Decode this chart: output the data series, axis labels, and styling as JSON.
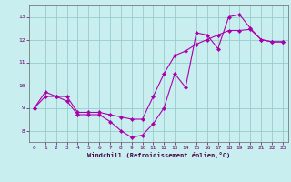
{
  "xlabel": "Windchill (Refroidissement éolien,°C)",
  "bg_color": "#c8eef0",
  "plot_bg_color": "#c8eef0",
  "line_color": "#aa00aa",
  "grid_color": "#99cccc",
  "xlim": [
    -0.5,
    23.5
  ],
  "ylim": [
    7.5,
    13.5
  ],
  "yticks": [
    8,
    9,
    10,
    11,
    12,
    13
  ],
  "xticks": [
    0,
    1,
    2,
    3,
    4,
    5,
    6,
    7,
    8,
    9,
    10,
    11,
    12,
    13,
    14,
    15,
    16,
    17,
    18,
    19,
    20,
    21,
    22,
    23
  ],
  "series1_x": [
    0,
    1,
    2,
    3,
    4,
    5,
    6,
    7,
    8,
    9,
    10,
    11,
    12,
    13,
    14,
    15,
    16,
    17,
    18,
    19,
    20,
    21,
    22,
    23
  ],
  "series1_y": [
    9.0,
    9.7,
    9.5,
    9.3,
    8.7,
    8.7,
    8.7,
    8.4,
    8.0,
    7.7,
    7.8,
    8.3,
    9.0,
    10.5,
    9.9,
    12.3,
    12.2,
    11.6,
    13.0,
    13.1,
    12.5,
    12.0,
    11.9,
    11.9
  ],
  "series2_x": [
    0,
    1,
    2,
    3,
    4,
    5,
    6,
    7,
    8,
    9,
    10,
    11,
    12,
    13,
    14,
    15,
    16,
    17,
    18,
    19,
    20,
    21,
    22,
    23
  ],
  "series2_y": [
    9.0,
    9.5,
    9.5,
    9.5,
    8.8,
    8.8,
    8.8,
    8.7,
    8.6,
    8.5,
    8.5,
    9.5,
    10.5,
    11.3,
    11.5,
    11.8,
    12.0,
    12.2,
    12.4,
    12.4,
    12.45,
    12.0,
    11.9,
    11.9
  ]
}
